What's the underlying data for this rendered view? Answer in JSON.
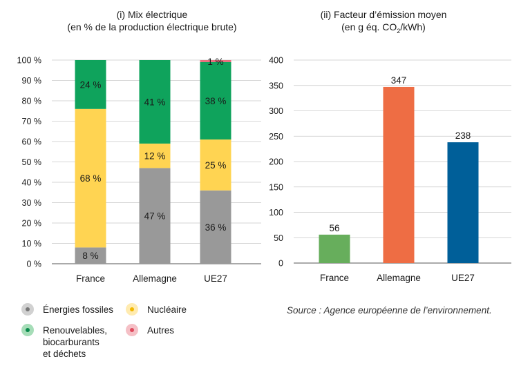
{
  "chart_data": [
    {
      "type": "bar",
      "stacked": true,
      "title": "(i) Mix électrique",
      "subtitle": "(en % de la production électrique brute)",
      "categories": [
        "France",
        "Allemagne",
        "UE27"
      ],
      "ylim": [
        0,
        100
      ],
      "yticks": [
        "0 %",
        "10 %",
        "20 %",
        "30 %",
        "40 %",
        "50 %",
        "60 %",
        "70 %",
        "80 %",
        "90 %",
        "100 %"
      ],
      "ytick_values": [
        0,
        10,
        20,
        30,
        40,
        50,
        60,
        70,
        80,
        90,
        100
      ],
      "grid": true,
      "series": [
        {
          "key": "fossiles",
          "values": [
            8,
            47,
            36
          ],
          "labels": [
            "8 %",
            "47 %",
            "36 %"
          ],
          "color": "#999999"
        },
        {
          "key": "nucleaire",
          "values": [
            68,
            12,
            25
          ],
          "labels": [
            "68 %",
            "12 %",
            "25 %"
          ],
          "color": "#FFD452"
        },
        {
          "key": "renouvelables",
          "values": [
            24,
            41,
            38
          ],
          "labels": [
            "24 %",
            "41 %",
            "38 %"
          ],
          "color": "#0FA35C"
        },
        {
          "key": "autres",
          "values": [
            0,
            0,
            1
          ],
          "labels": [
            "",
            "",
            "1 %"
          ],
          "color": "#E8707E"
        }
      ]
    },
    {
      "type": "bar",
      "title": "(ii) Facteur d’émission moyen",
      "subtitle": "(en g éq. CO₂/kWh)",
      "categories": [
        "France",
        "Allemagne",
        "UE27"
      ],
      "values": [
        56,
        347,
        238
      ],
      "labels": [
        "56",
        "347",
        "238"
      ],
      "colors": [
        "#67AE5C",
        "#EE6D44",
        "#005F99"
      ],
      "ylim": [
        0,
        400
      ],
      "yticks": [
        "0",
        "50",
        "100",
        "150",
        "200",
        "250",
        "300",
        "350",
        "400"
      ],
      "ytick_values": [
        0,
        50,
        100,
        150,
        200,
        250,
        300,
        350,
        400
      ],
      "grid": true
    }
  ],
  "legend": [
    {
      "label": "Énergies fossiles",
      "color": "#999999",
      "light": "#D1D1D1"
    },
    {
      "label": "Nucléaire",
      "color": "#FFD452",
      "light": "#FFEBB0"
    },
    {
      "label": "Renouvelables,\nbiocarburants\net déchets",
      "color": "#0FA35C",
      "light": "#A6DDB8"
    },
    {
      "label": "Autres",
      "color": "#E8707E",
      "light": "#F5C0C6"
    }
  ],
  "source": "Source : Agence européenne de l’environnement."
}
